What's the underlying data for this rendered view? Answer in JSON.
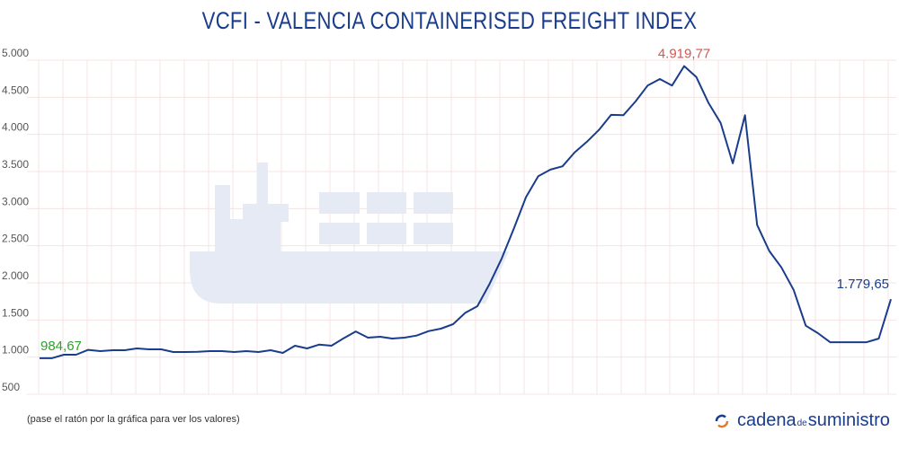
{
  "chart_data": {
    "type": "line",
    "title": "VCFI - VALENCIA CONTAINERISED FREIGHT INDEX",
    "xlabel": "",
    "ylabel": "",
    "ylim": [
      500,
      5000
    ],
    "yticks": [
      "5.000",
      "4.500",
      "4.000",
      "3.500",
      "3.000",
      "2.500",
      "2.000",
      "1.500",
      "1.000",
      "500"
    ],
    "ytick_values": [
      5000,
      4500,
      4000,
      3500,
      3000,
      2500,
      2000,
      1500,
      1000,
      500
    ],
    "grid": true,
    "legend": "none",
    "line_color": "#1a3c8c",
    "series": [
      {
        "values": [
          985,
          985,
          1032,
          1032,
          1097,
          1081,
          1093,
          1093,
          1117,
          1105,
          1105,
          1068,
          1068,
          1072,
          1081,
          1081,
          1068,
          1081,
          1068,
          1093,
          1056,
          1153,
          1117,
          1169,
          1153,
          1254,
          1346,
          1262,
          1274,
          1250,
          1262,
          1290,
          1350,
          1383,
          1443,
          1596,
          1685,
          1987,
          2329,
          2732,
          3155,
          3437,
          3526,
          3570,
          3759,
          3900,
          4061,
          4263,
          4259,
          4444,
          4658,
          4746,
          4658,
          4920,
          4774,
          4424,
          4154,
          3610,
          4259,
          2780,
          2430,
          2208,
          1906,
          1423,
          1322,
          1201,
          1201,
          1201,
          1201,
          1250,
          1780
        ]
      }
    ],
    "annotations": [
      {
        "text": "984,67",
        "color": "#2ca02c",
        "point": "first"
      },
      {
        "text": "4.919,77",
        "color": "#d9534f",
        "point": "max"
      },
      {
        "text": "1.779,65",
        "color": "#1a3c8c",
        "point": "last"
      }
    ]
  },
  "footer": {
    "note": "(pase el ratón por la gráfica para ver los valores)",
    "logo_cadena": "cadena",
    "logo_de": "de",
    "logo_suministro": "suministro"
  }
}
